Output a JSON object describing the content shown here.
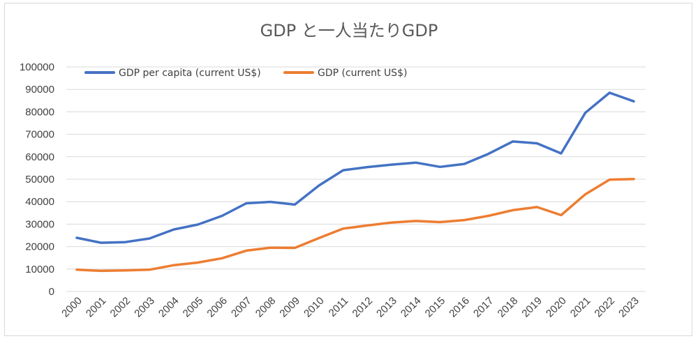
{
  "chart_data": {
    "type": "line",
    "title": "GDP と一人当たりGDP",
    "xlabel": "",
    "ylabel": "",
    "ylim": [
      0,
      100000
    ],
    "yticks": [
      0,
      10000,
      20000,
      30000,
      40000,
      50000,
      60000,
      70000,
      80000,
      90000,
      100000
    ],
    "grid": true,
    "legend_position": "top-left",
    "categories": [
      "2000",
      "2001",
      "2002",
      "2003",
      "2004",
      "2005",
      "2006",
      "2007",
      "2008",
      "2009",
      "2010",
      "2011",
      "2012",
      "2013",
      "2014",
      "2015",
      "2016",
      "2017",
      "2018",
      "2019",
      "2020",
      "2021",
      "2022",
      "2023"
    ],
    "series": [
      {
        "name": "GDP per capita (current US$)",
        "color": "#4472c4",
        "values": [
          23900,
          21700,
          22000,
          23600,
          27600,
          29800,
          33700,
          39300,
          39900,
          38700,
          47200,
          54000,
          55400,
          56500,
          57400,
          55500,
          56800,
          61300,
          66800,
          66000,
          61500,
          79600,
          88500,
          84700
        ]
      },
      {
        "name": "GDP (current US$)",
        "color": "#ed7d31",
        "values": [
          9700,
          9200,
          9400,
          9700,
          11700,
          12900,
          14800,
          18200,
          19500,
          19400,
          23800,
          28000,
          29400,
          30700,
          31400,
          30900,
          31800,
          33700,
          36200,
          37600,
          34000,
          43300,
          49800,
          50100
        ]
      }
    ]
  }
}
